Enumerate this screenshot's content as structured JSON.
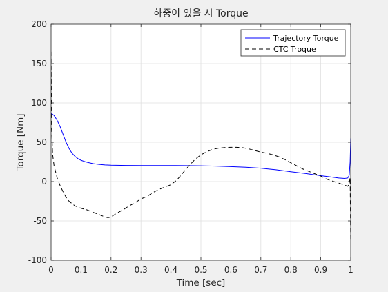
{
  "chart_data": {
    "type": "line",
    "title": "하중이 있을 시 Torque",
    "xlabel": "Time [sec]",
    "ylabel": "Torque [Nm]",
    "xlim": [
      0,
      1
    ],
    "ylim": [
      -100,
      200
    ],
    "xticks": [
      0,
      0.1,
      0.2,
      0.3,
      0.4,
      0.5,
      0.6,
      0.7,
      0.8,
      0.9,
      1
    ],
    "xtick_labels": [
      "0",
      "0.1",
      "0.2",
      "0.3",
      "0.4",
      "0.5",
      "0.6",
      "0.7",
      "0.8",
      "0.9",
      "1"
    ],
    "yticks": [
      -100,
      -50,
      0,
      50,
      100,
      150,
      200
    ],
    "ytick_labels": [
      "-100",
      "-50",
      "0",
      "50",
      "100",
      "150",
      "200"
    ],
    "grid": true,
    "legend_location": "top-right",
    "colors": {
      "figure_background": "#f0f0f0",
      "axes_background": "#ffffff",
      "axes_color": "#262626",
      "grid_color": "#dfdfdf"
    },
    "series": [
      {
        "name": "Trajectory Torque",
        "color": "#0000ff",
        "style": "solid",
        "x": [
          0,
          0.01,
          0.02,
          0.03,
          0.04,
          0.05,
          0.06,
          0.07,
          0.08,
          0.09,
          0.1,
          0.12,
          0.14,
          0.16,
          0.18,
          0.2,
          0.25,
          0.3,
          0.35,
          0.4,
          0.45,
          0.5,
          0.55,
          0.6,
          0.65,
          0.7,
          0.75,
          0.8,
          0.85,
          0.9,
          0.93,
          0.96,
          0.98,
          0.99,
          0.995,
          0.998,
          1
        ],
        "y": [
          87,
          84,
          78,
          70,
          60,
          50,
          42,
          36,
          32,
          29,
          27,
          24.5,
          22.8,
          21.8,
          21.2,
          20.8,
          20.5,
          20.4,
          20.4,
          20.4,
          20.3,
          20.1,
          19.6,
          19,
          18.2,
          17,
          15,
          12.5,
          10.2,
          7.5,
          6,
          4.5,
          4,
          4.5,
          8,
          25,
          55
        ]
      },
      {
        "name": "CTC Troque",
        "color": "#000000",
        "style": "dashed",
        "x": [
          0,
          0.002,
          0.005,
          0.01,
          0.02,
          0.03,
          0.04,
          0.05,
          0.06,
          0.07,
          0.08,
          0.09,
          0.1,
          0.12,
          0.14,
          0.16,
          0.18,
          0.19,
          0.2,
          0.22,
          0.24,
          0.26,
          0.28,
          0.3,
          0.32,
          0.34,
          0.36,
          0.38,
          0.4,
          0.42,
          0.44,
          0.46,
          0.48,
          0.5,
          0.52,
          0.54,
          0.56,
          0.58,
          0.6,
          0.62,
          0.64,
          0.66,
          0.68,
          0.7,
          0.72,
          0.74,
          0.76,
          0.78,
          0.8,
          0.82,
          0.84,
          0.86,
          0.88,
          0.9,
          0.92,
          0.94,
          0.96,
          0.98,
          0.99,
          0.995,
          0.998,
          1
        ],
        "y": [
          165,
          70,
          35,
          20,
          5,
          -5,
          -13,
          -20,
          -25,
          -28,
          -31,
          -32.5,
          -34,
          -36,
          -39,
          -42,
          -45,
          -46,
          -45,
          -40,
          -36,
          -31,
          -27,
          -22,
          -19,
          -14,
          -10,
          -7,
          -4,
          2,
          11,
          20,
          28,
          34,
          38,
          41,
          42.5,
          43.2,
          43.5,
          43.5,
          43,
          41.5,
          39.5,
          37.5,
          36,
          34,
          31.5,
          28,
          24,
          20,
          16,
          13,
          10,
          7,
          3,
          0.5,
          -2,
          -4.5,
          -6,
          -3,
          5,
          -75
        ]
      }
    ]
  }
}
